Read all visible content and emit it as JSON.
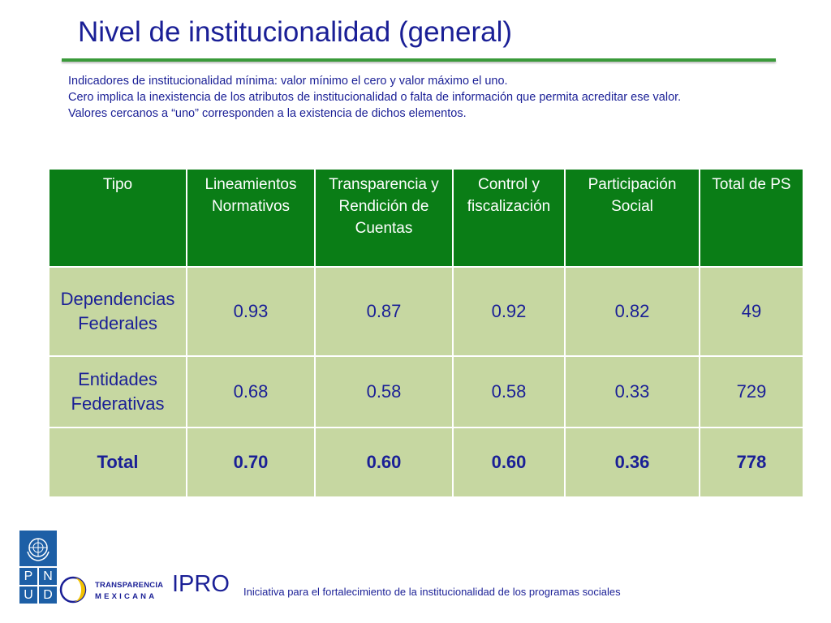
{
  "slide": {
    "title": "Nivel de institucionalidad (general)",
    "description": [
      "Indicadores de institucionalidad mínima: valor mínimo el cero y valor máximo el uno.",
      "Cero implica la inexistencia de los atributos de institucionalidad o falta de información que permita acreditar ese valor.",
      "Valores cercanos a “uno” corresponden a la existencia de dichos elementos."
    ]
  },
  "table": {
    "headers": [
      "Tipo",
      "Lineamientos Normativos",
      "Transparencia y Rendición de Cuentas",
      "Control y fiscalización",
      "Participación Social",
      "Total de PS"
    ],
    "rows": [
      [
        "Dependencias Federales",
        "0.93",
        "0.87",
        "0.92",
        "0.82",
        "49"
      ],
      [
        "Entidades Federativas",
        "0.68",
        "0.58",
        "0.58",
        "0.33",
        "729"
      ],
      [
        "Total",
        "0.70",
        "0.60",
        "0.60",
        "0.36",
        "778"
      ]
    ]
  },
  "footer": {
    "pnud_letters": [
      "P",
      "N",
      "U",
      "D"
    ],
    "transparencia_line1": "TRANSPARENCIA",
    "transparencia_line2": "MEXICANA",
    "ipro": "IPRO",
    "ipro_subtitle": "Iniciativa para el fortalecimiento de la institucionalidad de los programas sociales"
  },
  "colors": {
    "title": "#1a1f96",
    "rule": "#3a9a3a",
    "header_bg": "#0a7d16",
    "cell_bg": "#c6d7a1",
    "un_blue": "#1d5fa6",
    "tm_yellow": "#f2c200"
  },
  "icons": [
    "un-emblem-icon",
    "transparencia-mexicana-logo-icon"
  ]
}
